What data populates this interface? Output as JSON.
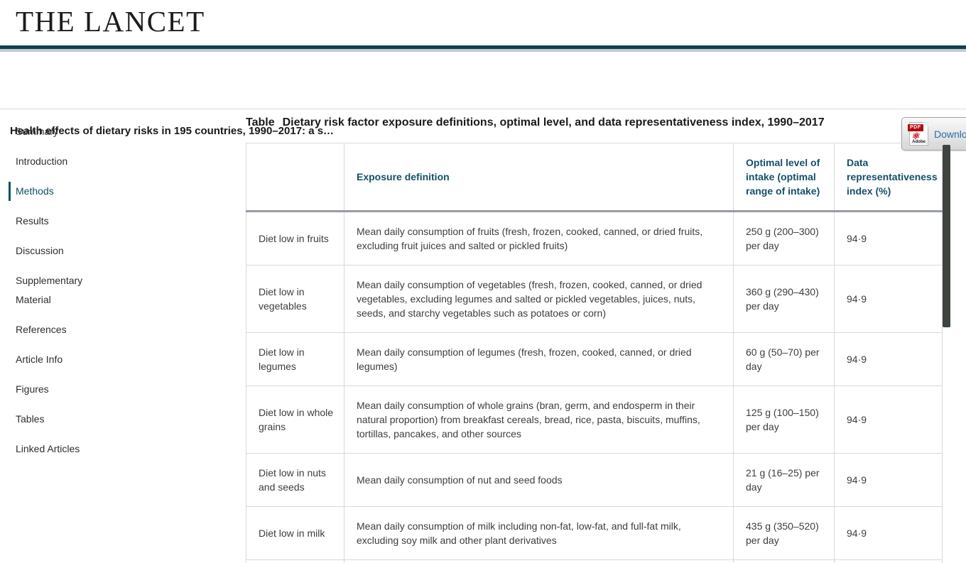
{
  "brand": {
    "logo_text": "THE LANCET"
  },
  "article_bar": {
    "title": "Health effects of dietary risks in 195 countries, 1990–2017: a s…",
    "download": {
      "label": "Download",
      "icon_pdf_text": "PDF",
      "icon_adobe_text": "Adobe"
    }
  },
  "sidebar": {
    "items": [
      {
        "label": "Summary",
        "active": false
      },
      {
        "label": "Introduction",
        "active": false
      },
      {
        "label": "Methods",
        "active": true
      },
      {
        "label": "Results",
        "active": false
      },
      {
        "label": "Discussion",
        "active": false
      },
      {
        "label": "Supplementary Material",
        "active": false
      },
      {
        "label": "References",
        "active": false
      },
      {
        "label": "Article Info",
        "active": false
      },
      {
        "label": "Figures",
        "active": false
      },
      {
        "label": "Tables",
        "active": false
      },
      {
        "label": "Linked Articles",
        "active": false
      }
    ]
  },
  "table": {
    "caption_label": "Table",
    "caption_text": "Dietary risk factor exposure definitions, optimal level, and data representativeness index, 1990–2017",
    "columns": {
      "risk_factor": "",
      "exposure": "Exposure definition",
      "optimal": "Optimal level of intake (optimal range of intake)",
      "dri": "Data representativeness index (%)"
    },
    "rows": [
      {
        "risk": "Diet low in fruits",
        "definition": "Mean daily consumption of fruits (fresh, frozen, cooked, canned, or dried fruits, excluding fruit juices and salted or pickled fruits)",
        "optimal": "250 g (200–300) per day",
        "dri": "94·9"
      },
      {
        "risk": "Diet low in vegetables",
        "definition": "Mean daily consumption of vegetables (fresh, frozen, cooked, canned, or dried vegetables, excluding legumes and salted or pickled vegetables, juices, nuts, seeds, and starchy vegetables such as potatoes or corn)",
        "optimal": "360 g (290–430) per day",
        "dri": "94·9"
      },
      {
        "risk": "Diet low in legumes",
        "definition": "Mean daily consumption of legumes (fresh, frozen, cooked, canned, or dried legumes)",
        "optimal": "60 g (50–70) per day",
        "dri": "94·9"
      },
      {
        "risk": "Diet low in whole grains",
        "definition": "Mean daily consumption of whole grains (bran, germ, and endosperm in their natural proportion) from breakfast cereals, bread, rice, pasta, biscuits, muffins, tortillas, pancakes, and other sources",
        "optimal": "125 g (100–150) per day",
        "dri": "94·9"
      },
      {
        "risk": "Diet low in nuts and seeds",
        "definition": "Mean daily consumption of nut and seed foods",
        "optimal": "21 g (16–25) per day",
        "dri": "94·9"
      },
      {
        "risk": "Diet low in milk",
        "definition": "Mean daily consumption of milk including non-fat, low-fat, and full-fat milk, excluding soy milk and other plant derivatives",
        "optimal": "435 g (350–520) per day",
        "dri": "94·9"
      }
    ]
  },
  "colors": {
    "brand_rule_teal": "#15404e",
    "active_nav_teal": "#11505f",
    "table_header_text": "#14506a",
    "link_blue": "#2a6ca8",
    "scrollbar_thumb": "#3e443f",
    "pdf_icon_red": "#cc1417"
  }
}
